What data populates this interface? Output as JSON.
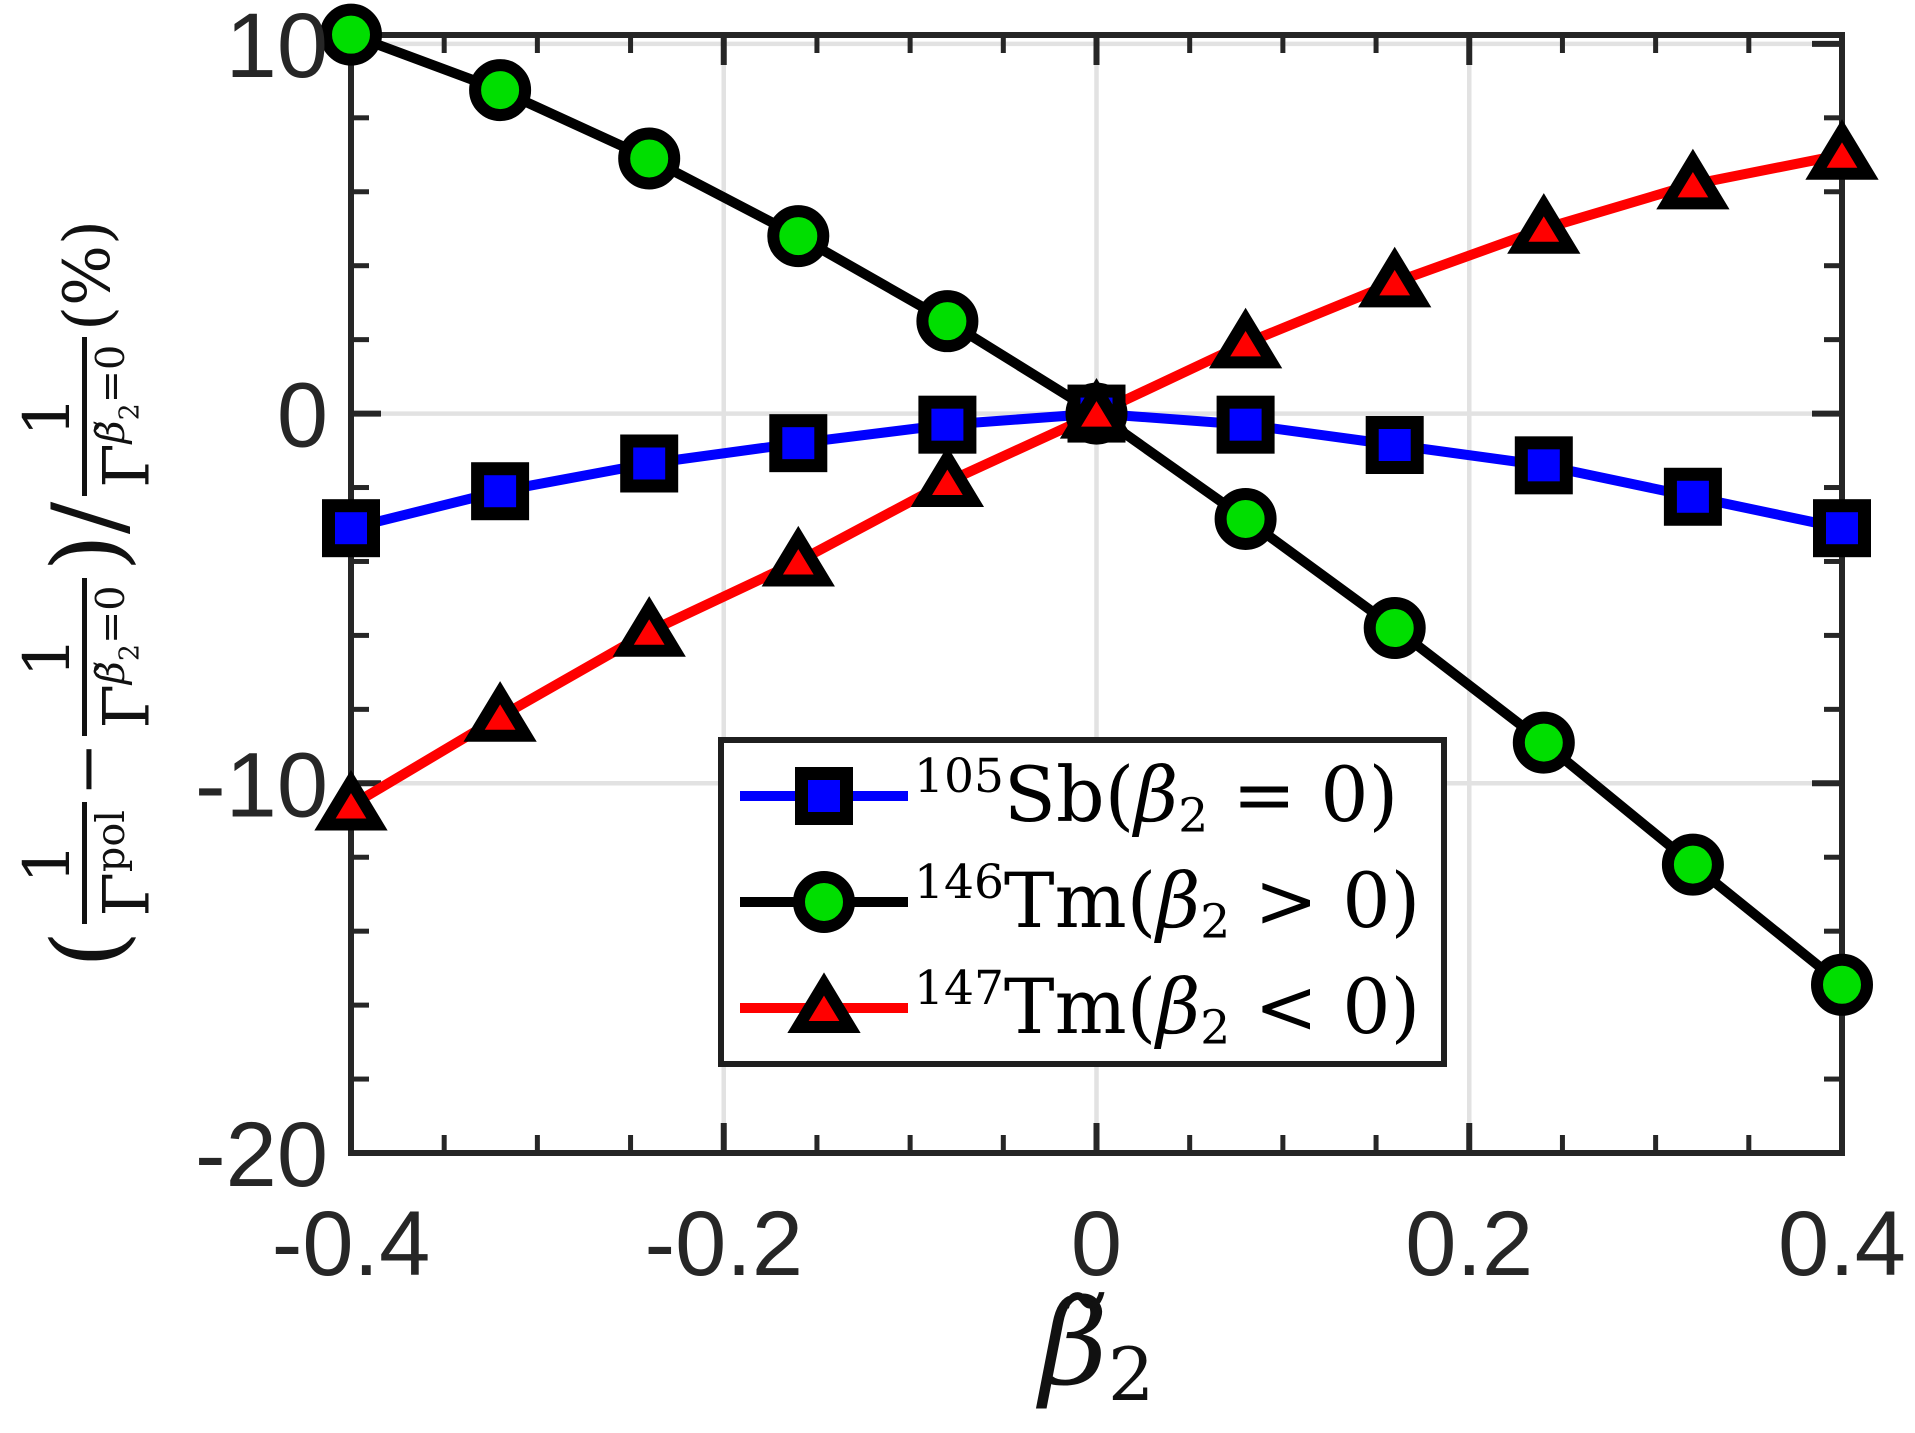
{
  "figure": {
    "background": "#ffffff",
    "axis_color": "#262626",
    "grid_color": "#e2e2e2",
    "tick_label_color": "#262626",
    "text_color": "#111111"
  },
  "chart_data": {
    "type": "line",
    "title": "",
    "grid": true,
    "legend_position": "inside lower-center-left",
    "xlim": [
      -0.4,
      0.4
    ],
    "ylim": [
      -20,
      10.24
    ],
    "xticks": {
      "values": [
        -0.4,
        -0.2,
        0,
        0.2,
        0.4
      ],
      "labels": [
        "-0.4",
        "-0.2",
        "0",
        "0.2",
        "0.4"
      ]
    },
    "yticks": {
      "values": [
        10,
        0,
        -10,
        -20
      ],
      "labels": [
        "10",
        "0",
        "-10",
        "-20"
      ]
    },
    "xminor_step": 0.05,
    "yminor_step": 2,
    "x": [
      -0.4,
      -0.32,
      -0.24,
      -0.16,
      -0.08,
      0,
      0.08,
      0.16,
      0.24,
      0.32,
      0.4
    ],
    "series": [
      {
        "name": "105Sb(beta2 = 0)",
        "line_color": "#0000ff",
        "marker": "square",
        "marker_fill": "#0000ff",
        "marker_edge": "#000000",
        "values": [
          -3.1,
          -2.1,
          -1.35,
          -0.8,
          -0.3,
          0.0,
          -0.3,
          -0.85,
          -1.4,
          -2.25,
          -3.1
        ],
        "label_parts": [
          {
            "t": "105",
            "s": "sup"
          },
          {
            "t": "Sb(",
            "s": "rm"
          },
          {
            "t": "β",
            "s": "it"
          },
          {
            "t": "2",
            "s": "sub"
          },
          {
            "t": " = ",
            "s": "rm"
          },
          {
            "t": "0",
            "s": "rm"
          },
          {
            "t": ")",
            "s": "rm"
          }
        ]
      },
      {
        "name": "146Tm(beta2 > 0)",
        "line_color": "#000000",
        "marker": "circle",
        "marker_fill": "#00de00",
        "marker_edge": "#000000",
        "values": [
          10.25,
          8.75,
          6.9,
          4.8,
          2.5,
          0.0,
          -2.85,
          -5.8,
          -8.9,
          -12.2,
          -15.45
        ],
        "label_parts": [
          {
            "t": "146",
            "s": "sup"
          },
          {
            "t": "Tm(",
            "s": "rm"
          },
          {
            "t": "β",
            "s": "it"
          },
          {
            "t": "2",
            "s": "sub"
          },
          {
            "t": " > ",
            "s": "rm"
          },
          {
            "t": "0",
            "s": "rm"
          },
          {
            "t": ")",
            "s": "rm"
          }
        ]
      },
      {
        "name": "147Tm(beta2 < 0)",
        "line_color": "#ff0000",
        "marker": "triangle-up",
        "marker_fill": "#ff0000",
        "marker_edge": "#000000",
        "values": [
          -10.6,
          -8.2,
          -5.9,
          -4.0,
          -1.85,
          0.0,
          1.9,
          3.55,
          5.0,
          6.2,
          7.0
        ],
        "label_parts": [
          {
            "t": "147",
            "s": "sup"
          },
          {
            "t": "Tm(",
            "s": "rm"
          },
          {
            "t": "β",
            "s": "it"
          },
          {
            "t": "2",
            "s": "sub"
          },
          {
            "t": " < ",
            "s": "rm"
          },
          {
            "t": "0",
            "s": "rm"
          },
          {
            "t": ")",
            "s": "rm"
          }
        ]
      }
    ],
    "xlabel_parts": [
      {
        "t": "β̃",
        "s": "it"
      },
      {
        "t": "2",
        "s": "sub"
      }
    ],
    "ylabel_parts": [
      {
        "t": "(",
        "s": "big"
      },
      {
        "frac": {
          "num": [
            {
              "t": "1",
              "s": "rm"
            }
          ],
          "den": [
            {
              "t": "Γ",
              "s": "rm"
            },
            {
              "t": "pol",
              "s": "sup"
            }
          ]
        }
      },
      {
        "t": " − ",
        "s": "rm"
      },
      {
        "frac": {
          "num": [
            {
              "t": "1",
              "s": "rm"
            }
          ],
          "den": [
            {
              "t": "Γ",
              "s": "rm"
            },
            {
              "t": "β̃",
              "s": "supit"
            },
            {
              "t": "2",
              "s": "supsub"
            },
            {
              "t": "=0",
              "s": "sup"
            }
          ]
        }
      },
      {
        "t": ")",
        "s": "big"
      },
      {
        "t": "/",
        "s": "bigslash"
      },
      {
        "frac": {
          "num": [
            {
              "t": "1",
              "s": "rm"
            }
          ],
          "den": [
            {
              "t": "Γ",
              "s": "rm"
            },
            {
              "t": "β̃",
              "s": "supit"
            },
            {
              "t": "2",
              "s": "supsub"
            },
            {
              "t": "=0",
              "s": "sup"
            }
          ]
        }
      },
      {
        "t": " (%)",
        "s": "rm"
      }
    ]
  }
}
